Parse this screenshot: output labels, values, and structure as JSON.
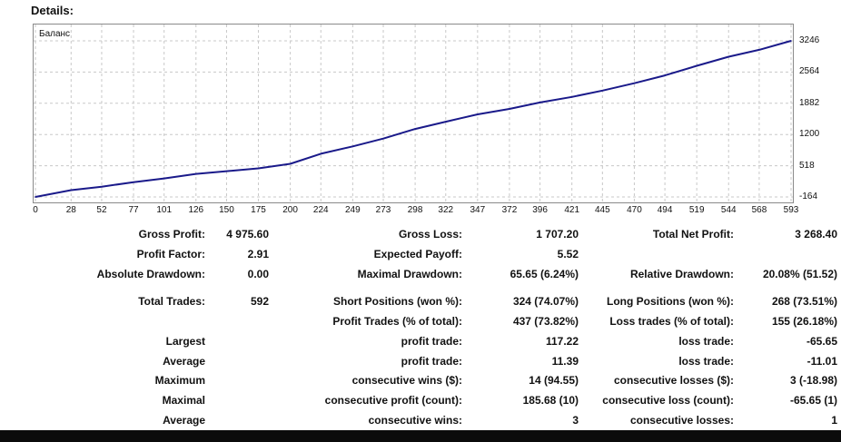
{
  "details_label": "Details:",
  "chart_data": {
    "type": "line",
    "series": [
      {
        "name": "Баланс",
        "color": "#1a1a8a",
        "x": [
          0,
          28,
          52,
          77,
          101,
          126,
          150,
          175,
          200,
          224,
          249,
          273,
          298,
          322,
          347,
          372,
          396,
          421,
          445,
          470,
          494,
          519,
          544,
          568,
          593
        ],
        "y": [
          -164,
          -15,
          60,
          160,
          240,
          340,
          400,
          460,
          560,
          780,
          940,
          1110,
          1320,
          1480,
          1640,
          1760,
          1900,
          2020,
          2160,
          2320,
          2490,
          2700,
          2900,
          3050,
          3246
        ]
      }
    ],
    "y_ticks": [
      3246,
      2564,
      1882,
      1200,
      518,
      -164
    ],
    "x_ticks": [
      0,
      28,
      52,
      77,
      101,
      126,
      150,
      175,
      200,
      224,
      249,
      273,
      298,
      322,
      347,
      372,
      396,
      421,
      445,
      470,
      494,
      519,
      544,
      568,
      593
    ],
    "xlim": [
      0,
      593
    ],
    "ylim": [
      -164,
      3246
    ],
    "grid": true,
    "title": "",
    "xlabel": "",
    "ylabel": ""
  },
  "stats": [
    {
      "key": "gross_profit_label",
      "text": "Gross Profit:"
    },
    {
      "key": "gross_profit_value",
      "text": "4 975.60"
    },
    {
      "key": "gross_loss_label",
      "text": "Gross Loss:"
    },
    {
      "key": "gross_loss_value",
      "text": "1 707.20"
    },
    {
      "key": "net_profit_label",
      "text": "Total Net Profit:"
    },
    {
      "key": "net_profit_value",
      "text": "3 268.40"
    },
    {
      "key": "profit_factor_label",
      "text": "Profit Factor:"
    },
    {
      "key": "profit_factor_value",
      "text": "2.91"
    },
    {
      "key": "expected_payoff_label",
      "text": "Expected Payoff:"
    },
    {
      "key": "expected_payoff_value",
      "text": "5.52"
    },
    {
      "key": "abs_drawdown_label",
      "text": "Absolute Drawdown:"
    },
    {
      "key": "abs_drawdown_value",
      "text": "0.00"
    },
    {
      "key": "max_drawdown_label",
      "text": "Maximal Drawdown:"
    },
    {
      "key": "max_drawdown_value",
      "text": "65.65 (6.24%)"
    },
    {
      "key": "rel_drawdown_label",
      "text": "Relative Drawdown:"
    },
    {
      "key": "rel_drawdown_value",
      "text": "20.08% (51.52)"
    },
    {
      "key": "total_trades_label",
      "text": "Total Trades:"
    },
    {
      "key": "total_trades_value",
      "text": "592"
    },
    {
      "key": "short_pos_label",
      "text": "Short Positions (won %):"
    },
    {
      "key": "short_pos_value",
      "text": "324 (74.07%)"
    },
    {
      "key": "long_pos_label",
      "text": "Long Positions (won %):"
    },
    {
      "key": "long_pos_value",
      "text": "268 (73.51%)"
    },
    {
      "key": "profit_trades_label",
      "text": "Profit Trades (% of total):"
    },
    {
      "key": "profit_trades_value",
      "text": "437 (73.82%)"
    },
    {
      "key": "loss_trades_label",
      "text": "Loss trades (% of total):"
    },
    {
      "key": "loss_trades_value",
      "text": "155 (26.18%)"
    },
    {
      "key": "largest_label",
      "text": "Largest"
    },
    {
      "key": "largest_profit_label",
      "text": "profit trade:"
    },
    {
      "key": "largest_profit_value",
      "text": "117.22"
    },
    {
      "key": "largest_loss_label",
      "text": "loss trade:"
    },
    {
      "key": "largest_loss_value",
      "text": "-65.65"
    },
    {
      "key": "average_label",
      "text": "Average"
    },
    {
      "key": "average_profit_label",
      "text": "profit trade:"
    },
    {
      "key": "average_profit_value",
      "text": "11.39"
    },
    {
      "key": "average_loss_label",
      "text": "loss trade:"
    },
    {
      "key": "average_loss_value",
      "text": "-11.01"
    },
    {
      "key": "maximum_label",
      "text": "Maximum"
    },
    {
      "key": "max_cons_wins_label",
      "text": "consecutive wins ($):"
    },
    {
      "key": "max_cons_wins_value",
      "text": "14 (94.55)"
    },
    {
      "key": "max_cons_losses_label",
      "text": "consecutive losses ($):"
    },
    {
      "key": "max_cons_losses_value",
      "text": "3 (-18.98)"
    },
    {
      "key": "maximal_label",
      "text": "Maximal"
    },
    {
      "key": "maximal_cons_profit_label",
      "text": "consecutive profit (count):"
    },
    {
      "key": "maximal_cons_profit_value",
      "text": "185.68 (10)"
    },
    {
      "key": "maximal_cons_loss_label",
      "text": "consecutive loss (count):"
    },
    {
      "key": "maximal_cons_loss_value",
      "text": "-65.65 (1)"
    },
    {
      "key": "average2_label",
      "text": "Average"
    },
    {
      "key": "avg_cons_wins_label",
      "text": "consecutive wins:"
    },
    {
      "key": "avg_cons_wins_value",
      "text": "3"
    },
    {
      "key": "avg_cons_losses_label",
      "text": "consecutive losses:"
    },
    {
      "key": "avg_cons_losses_value",
      "text": "1"
    }
  ]
}
